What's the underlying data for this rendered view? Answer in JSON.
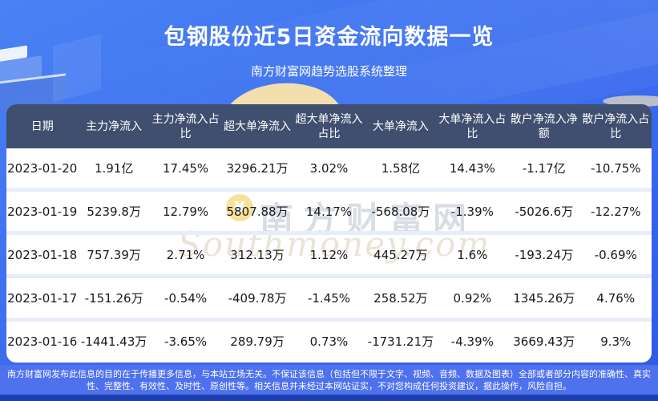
{
  "header": {
    "title": "包钢股份近5日资金流向数据一览",
    "subtitle": "南方财富网趋势选股系统整理"
  },
  "chart_data": {
    "type": "table",
    "title": "包钢股份近5日资金流向数据一览",
    "columns": [
      "日期",
      "主力净流入",
      "主力净流入占比",
      "超大单净流入",
      "超大单净流入占比",
      "大单净流入",
      "大单净流入占比",
      "散户净流入净额",
      "散户净流入占比"
    ],
    "rows": [
      [
        "2023-01-20",
        "1.91亿",
        "17.45%",
        "3296.21万",
        "3.02%",
        "1.58亿",
        "14.43%",
        "-1.17亿",
        "-10.75%"
      ],
      [
        "2023-01-19",
        "5239.8万",
        "12.79%",
        "5807.88万",
        "14.17%",
        "-568.08万",
        "-1.39%",
        "-5026.6万",
        "-12.27%"
      ],
      [
        "2023-01-18",
        "757.39万",
        "2.71%",
        "312.13万",
        "1.12%",
        "445.27万",
        "1.6%",
        "-193.24万",
        "-0.69%"
      ],
      [
        "2023-01-17",
        "-151.26万",
        "-0.54%",
        "-409.78万",
        "-1.45%",
        "258.52万",
        "0.92%",
        "1345.26万",
        "4.76%"
      ],
      [
        "2023-01-16",
        "-1441.43万",
        "-3.65%",
        "289.79万",
        "0.73%",
        "-1731.21万",
        "-4.39%",
        "3669.43万",
        "9.3%"
      ]
    ]
  },
  "watermark": {
    "cn": "南方财富网",
    "en": "Southmoney.com",
    "coin_symbol": "¥"
  },
  "footer": {
    "text": "南方财富网发布此信息的目的在于传播更多信息，与本站立场无关。不保证该信息（包括但不限于文字、视频、音频、数据及图表）全部或者部分内容的准确性、真实性、完整性、有效性、及时性、原创性等。相关信息并未经过本网站证实，不对您构成任何投资建议，据此操作，风险自担。"
  },
  "colors": {
    "background_top": "#4a82f4",
    "background_bottom": "#2e5ae4",
    "table_header_bg": "#404e6f",
    "row_separator": "#e7edf9",
    "footer_bg": "#4e71ee",
    "bottom_bar": "#1e3fae",
    "coin": "#f6db85",
    "dome": "#f3dfae"
  }
}
